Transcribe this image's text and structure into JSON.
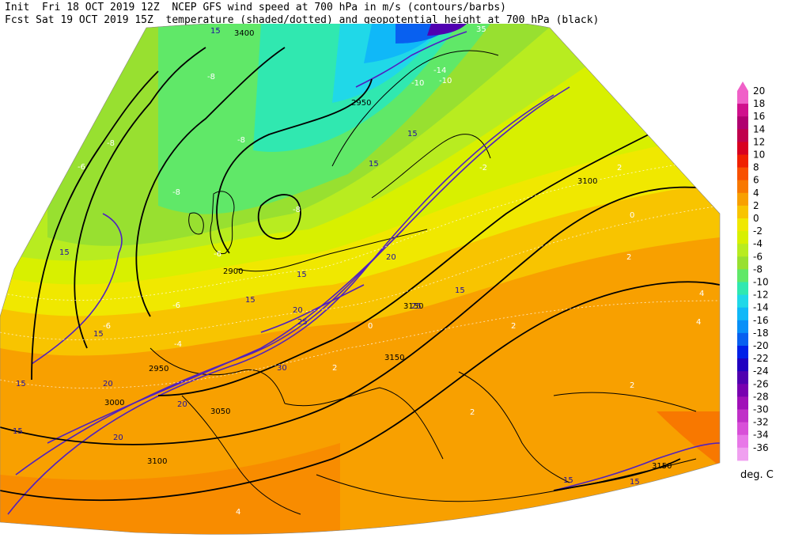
{
  "header": {
    "line1_left": "Init  Fri 18 OCT 2019 12Z",
    "line1_right": "NCEP GFS wind speed at 700 hPa in m/s (contours/barbs)",
    "line2_left": "Fcst Sat 19 OCT 2019 15Z",
    "line2_right": "temperature (shaded/dotted) and geopotential height at 700 hPa (black)"
  },
  "legend": {
    "unit": "deg. C",
    "levels": [
      "20",
      "18",
      "16",
      "14",
      "12",
      "10",
      "8",
      "6",
      "4",
      "2",
      "0",
      "-2",
      "-4",
      "-6",
      "-8",
      "-10",
      "-12",
      "-14",
      "-16",
      "-18",
      "-20",
      "-22",
      "-24",
      "-26",
      "-28",
      "-30",
      "-32",
      "-34",
      "-36"
    ],
    "colors": [
      "#f060c8",
      "#d0108c",
      "#b00070",
      "#c0004c",
      "#d80020",
      "#f02000",
      "#f85000",
      "#f87800",
      "#f8a000",
      "#f8c400",
      "#f0e800",
      "#d8f000",
      "#b8ec20",
      "#98e030",
      "#60e868",
      "#30e8b0",
      "#20d8e8",
      "#10b8f8",
      "#0890f8",
      "#0860f0",
      "#0020e8",
      "#2000c0",
      "#5000b0",
      "#7800b0",
      "#a010b8",
      "#c030c8",
      "#d850d8",
      "#e878e8",
      "#f0a0f0"
    ],
    "top_arrow_color": "#f060c8"
  },
  "map": {
    "height_labels": [
      "3400",
      "2950",
      "2900",
      "2950",
      "3000",
      "3050",
      "3100",
      "3100",
      "3150",
      "3150",
      "3150"
    ],
    "wind_labels": [
      "15",
      "15",
      "15",
      "15",
      "15",
      "15",
      "15",
      "15",
      "15",
      "15",
      "15",
      "15",
      "20",
      "20",
      "20",
      "20",
      "20",
      "25",
      "25",
      "30",
      "35"
    ],
    "temp_labels": [
      "-10",
      "-8",
      "-8",
      "-8",
      "-8",
      "-6",
      "-6",
      "-8",
      "-6",
      "-6",
      "-14",
      "-10",
      "-4",
      "-2",
      "0",
      "0",
      "2",
      "2",
      "2",
      "2",
      "2",
      "4",
      "4",
      "2",
      "4"
    ]
  }
}
